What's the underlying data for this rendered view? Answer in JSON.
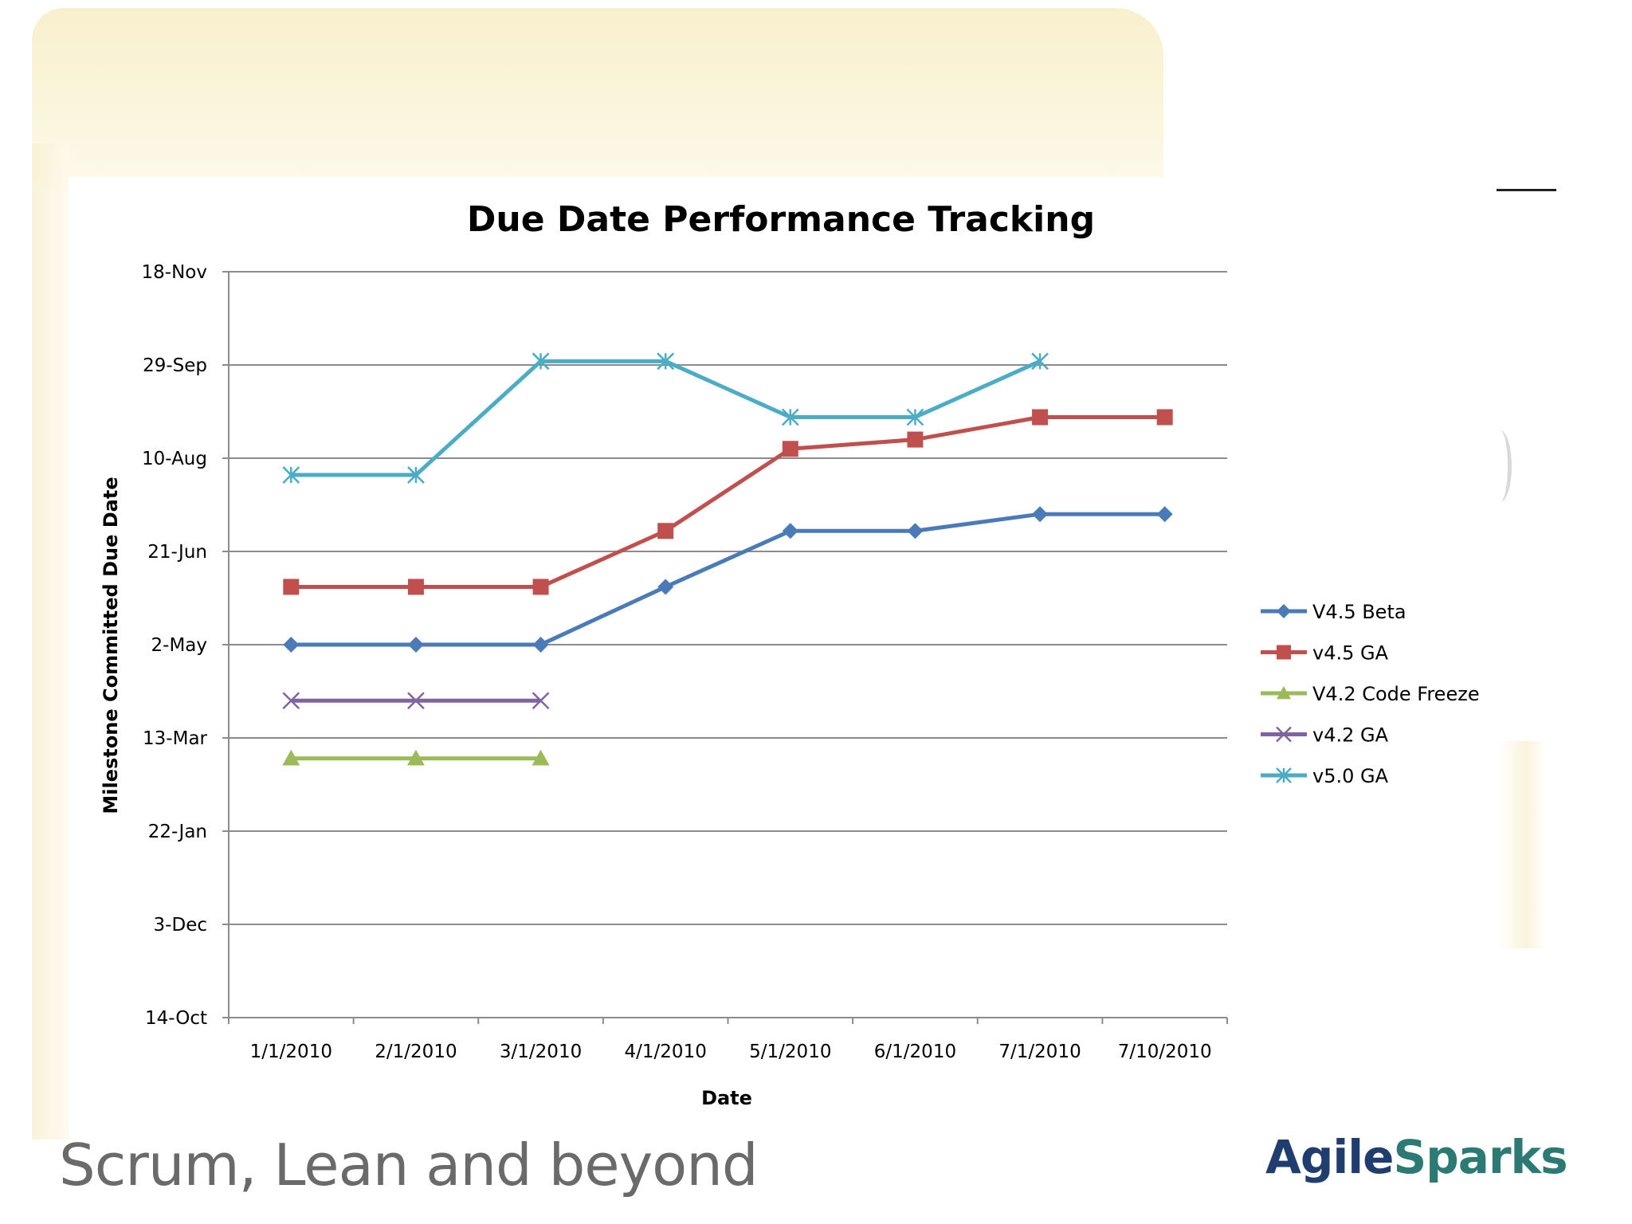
{
  "footer": {
    "tagline": "Scrum, Lean and beyond",
    "logo_part1": "Agile",
    "logo_part2": "Sparks"
  },
  "colors": {
    "v45_beta": "#4a7ab8",
    "v45_ga": "#c0504d",
    "v42_code_freeze": "#9bbb59",
    "v42_ga": "#8064a2",
    "v50_ga": "#4bacc6"
  },
  "chart_data": {
    "type": "line",
    "title": "Due Date Performance Tracking",
    "xlabel": "Date",
    "ylabel": "Milestone Committed Due Date",
    "categories": [
      "1/1/2010",
      "2/1/2010",
      "3/1/2010",
      "4/1/2010",
      "5/1/2010",
      "6/1/2010",
      "7/1/2010",
      "7/10/2010"
    ],
    "y_ticks": [
      "14-Oct",
      "3-Dec",
      "22-Jan",
      "13-Mar",
      "2-May",
      "21-Jun",
      "10-Aug",
      "29-Sep",
      "18-Nov"
    ],
    "ylim": [
      0,
      400
    ],
    "y_units": "days since 14-Oct-2009",
    "grid": true,
    "legend_position": "right",
    "series": [
      {
        "name": "V4.5 Beta",
        "marker": "diamond",
        "color": "#4a7ab8",
        "values": [
          200,
          200,
          200,
          231,
          261,
          261,
          270,
          270
        ]
      },
      {
        "name": "v4.5 GA",
        "marker": "square",
        "color": "#c0504d",
        "values": [
          231,
          231,
          231,
          261,
          305,
          310,
          322,
          322
        ]
      },
      {
        "name": "V4.2 Code Freeze",
        "marker": "triangle",
        "color": "#9bbb59",
        "values": [
          139,
          139,
          139,
          null,
          null,
          null,
          null,
          null
        ]
      },
      {
        "name": "v4.2 GA",
        "marker": "x",
        "color": "#8064a2",
        "values": [
          170,
          170,
          170,
          null,
          null,
          null,
          null,
          null
        ]
      },
      {
        "name": "v5.0 GA",
        "marker": "star",
        "color": "#4bacc6",
        "values": [
          291,
          291,
          352,
          352,
          322,
          322,
          352,
          null
        ]
      }
    ]
  }
}
